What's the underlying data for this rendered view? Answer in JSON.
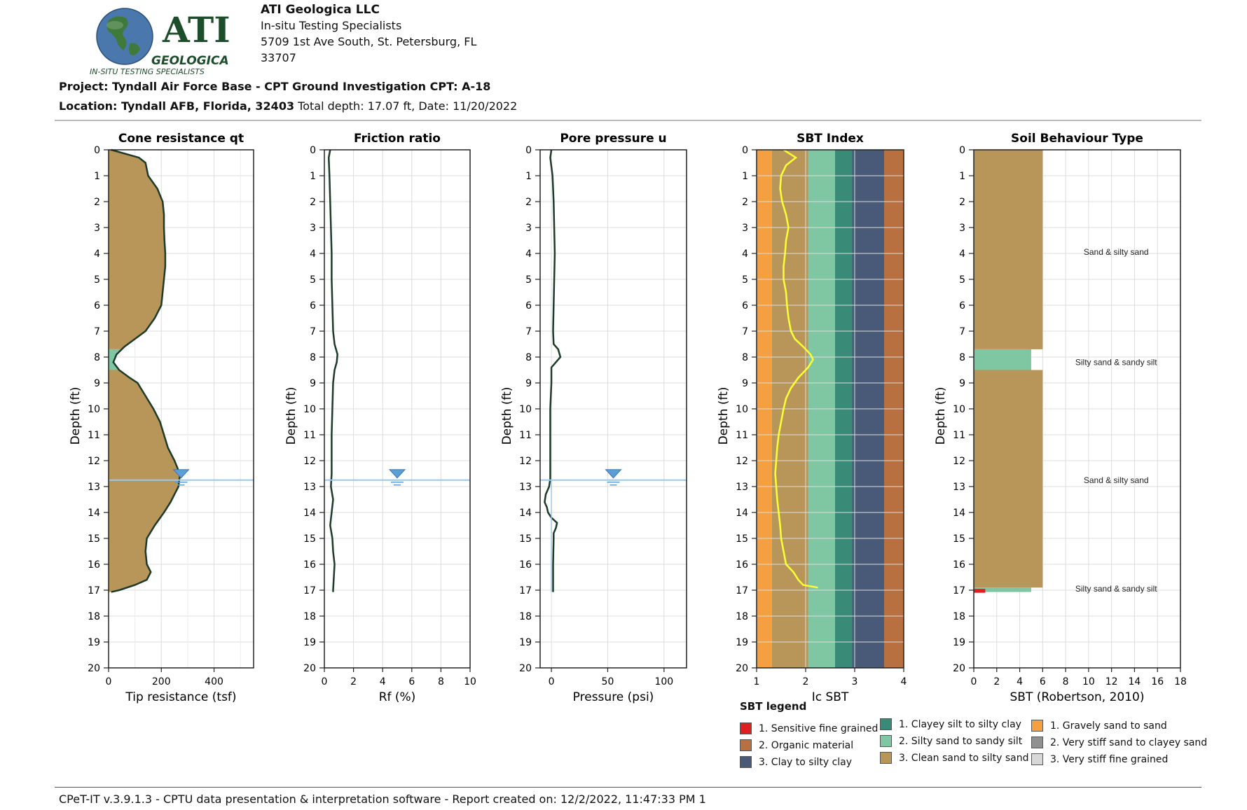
{
  "header": {
    "logo": {
      "word": "ATI",
      "subword": "GEOLOGICA",
      "tagline": "IN-SITU TESTING SPECIALISTS",
      "globe_icon": "globe-icon",
      "colors": {
        "globe": "#3f6fa6",
        "land": "#2f6b3a",
        "text": "#1e4d2b"
      }
    },
    "company": "ATI Geologica LLC",
    "tagline": "In-situ Testing Specialists",
    "address_line1": "5709 1st Ave South, St. Petersburg, FL",
    "address_line2": "33707",
    "project_line": "Project: Tyndall Air Force Base - CPT Ground Investigation CPT: A-18",
    "location_line": "Location: Tyndall AFB, Florida, 32403",
    "location_rest": " Total depth: 17.07 ft, Date: 11/20/2022"
  },
  "footer": "CPeT-IT v.3.9.1.3 - CPTU data presentation & interpretation software - Report created on: 12/2/2022, 11:47:33 PM 1",
  "colors": {
    "sand": "#b8965a",
    "silty_sand": "#7fc7a3",
    "outline": "#1e3a2a",
    "water": "#9cc7e6",
    "ic_line": "#ffff33"
  },
  "chart_data": [
    {
      "type": "area",
      "title": "Cone resistance qt",
      "xlabel": "Tip resistance (tsf)",
      "ylabel": "Depth (ft)",
      "xlim": [
        0,
        550
      ],
      "ylim": [
        20,
        0
      ],
      "xticks": [
        0,
        200,
        400
      ],
      "yticks": [
        0,
        1,
        2,
        3,
        4,
        5,
        6,
        7,
        8,
        9,
        10,
        11,
        12,
        13,
        14,
        15,
        16,
        17,
        18,
        19,
        20
      ],
      "water_table_depth": 12.75,
      "series": [
        {
          "depth": [
            0,
            0.3,
            0.5,
            1,
            1.5,
            2,
            2.5,
            3,
            3.5,
            4,
            4.5,
            5,
            5.5,
            6,
            6.5,
            7,
            7.3,
            7.6,
            7.9,
            8.2,
            8.5,
            8.8,
            9,
            9.5,
            10,
            10.5,
            11,
            11.5,
            12,
            12.3,
            12.6,
            13,
            13.3,
            13.6,
            14,
            14.5,
            15,
            15.5,
            16,
            16.3,
            16.6,
            16.8,
            17,
            17.07
          ],
          "qt": [
            10,
            115,
            140,
            150,
            185,
            205,
            210,
            210,
            212,
            215,
            215,
            210,
            205,
            200,
            175,
            140,
            100,
            60,
            30,
            18,
            40,
            80,
            110,
            140,
            170,
            195,
            210,
            225,
            250,
            262,
            270,
            265,
            250,
            235,
            210,
            175,
            145,
            140,
            145,
            160,
            145,
            100,
            40,
            10
          ]
        }
      ],
      "sbt_bands": [
        {
          "from": 0,
          "to": 7.7,
          "class": "sand"
        },
        {
          "from": 7.7,
          "to": 8.5,
          "class": "silty_sand"
        },
        {
          "from": 8.5,
          "to": 17.07,
          "class": "sand"
        }
      ]
    },
    {
      "type": "line",
      "title": "Friction ratio",
      "xlabel": "Rf (%)",
      "ylabel": "Depth (ft)",
      "xlim": [
        0,
        10
      ],
      "ylim": [
        20,
        0
      ],
      "xticks": [
        0,
        2,
        4,
        6,
        8,
        10
      ],
      "yticks": [
        0,
        1,
        2,
        3,
        4,
        5,
        6,
        7,
        8,
        9,
        10,
        11,
        12,
        13,
        14,
        15,
        16,
        17,
        18,
        19,
        20
      ],
      "water_table_depth": 12.75,
      "series": [
        {
          "depth": [
            0,
            0.3,
            1,
            2,
            3,
            4,
            5,
            6,
            7,
            7.5,
            7.9,
            8.2,
            8.5,
            9,
            10,
            11,
            12,
            12.5,
            13,
            13.5,
            14,
            14.5,
            15,
            15.5,
            16,
            16.5,
            17,
            17.07
          ],
          "rf": [
            0.4,
            0.3,
            0.35,
            0.4,
            0.45,
            0.5,
            0.5,
            0.55,
            0.6,
            0.7,
            0.9,
            0.85,
            0.7,
            0.6,
            0.55,
            0.5,
            0.5,
            0.5,
            0.45,
            0.6,
            0.5,
            0.4,
            0.55,
            0.6,
            0.7,
            0.65,
            0.6,
            0.6
          ]
        }
      ]
    },
    {
      "type": "line",
      "title": "Pore pressure u",
      "xlabel": "Pressure (psi)",
      "ylabel": "Depth (ft)",
      "xlim": [
        -10,
        120
      ],
      "ylim": [
        20,
        0
      ],
      "xticks": [
        0,
        50,
        100
      ],
      "yticks": [
        0,
        1,
        2,
        3,
        4,
        5,
        6,
        7,
        8,
        9,
        10,
        11,
        12,
        13,
        14,
        15,
        16,
        17,
        18,
        19,
        20
      ],
      "water_table_depth": 12.75,
      "series": [
        {
          "depth": [
            0,
            0.3,
            1,
            2,
            3,
            4,
            5,
            6,
            7,
            7.5,
            7.7,
            8,
            8.2,
            8.4,
            9,
            10,
            11,
            12,
            12.7,
            13,
            13.3,
            13.6,
            13.8,
            14,
            14.2,
            14.4,
            14.6,
            14.8,
            15,
            16,
            17,
            17.07
          ],
          "u": [
            0,
            -1,
            1,
            2,
            2.5,
            3,
            2.5,
            2,
            1.5,
            2,
            6,
            8,
            4,
            0,
            0,
            -1,
            -1,
            -1,
            -1,
            -2,
            -5,
            -6,
            -4,
            -3,
            0,
            5,
            4,
            2,
            2,
            1.5,
            1.5,
            1.5
          ]
        }
      ]
    },
    {
      "type": "line",
      "title": "SBT Index",
      "xlabel": "Ic SBT",
      "ylabel": "Depth (ft)",
      "xlim": [
        1,
        4
      ],
      "ylim": [
        20,
        0
      ],
      "xticks": [
        1,
        2,
        3,
        4
      ],
      "yticks": [
        0,
        1,
        2,
        3,
        4,
        5,
        6,
        7,
        8,
        9,
        10,
        11,
        12,
        13,
        14,
        15,
        16,
        17,
        18,
        19,
        20
      ],
      "zones": [
        {
          "from": 1.0,
          "to": 1.31,
          "color": "#f5a040"
        },
        {
          "from": 1.31,
          "to": 2.05,
          "color": "#b8965a"
        },
        {
          "from": 2.05,
          "to": 2.6,
          "color": "#7fc7a3"
        },
        {
          "from": 2.6,
          "to": 2.95,
          "color": "#3a8a78"
        },
        {
          "from": 2.95,
          "to": 3.6,
          "color": "#485a78"
        },
        {
          "from": 3.6,
          "to": 4.0,
          "color": "#b87040"
        }
      ],
      "series": [
        {
          "depth": [
            0,
            0.3,
            0.6,
            1,
            1.5,
            2,
            2.5,
            3,
            3.5,
            4,
            4.5,
            5,
            5.5,
            6,
            6.5,
            7,
            7.3,
            7.6,
            7.9,
            8.1,
            8.4,
            8.8,
            9.2,
            9.6,
            10,
            10.5,
            11,
            11.5,
            12,
            12.5,
            13,
            13.5,
            14,
            14.5,
            15,
            15.5,
            16,
            16.3,
            16.6,
            16.8,
            16.9
          ],
          "ic": [
            1.55,
            1.8,
            1.6,
            1.5,
            1.48,
            1.52,
            1.6,
            1.65,
            1.6,
            1.58,
            1.55,
            1.55,
            1.6,
            1.62,
            1.65,
            1.7,
            1.78,
            1.95,
            2.1,
            2.15,
            2.05,
            1.85,
            1.7,
            1.6,
            1.55,
            1.5,
            1.45,
            1.42,
            1.4,
            1.38,
            1.4,
            1.42,
            1.45,
            1.48,
            1.5,
            1.55,
            1.6,
            1.75,
            1.85,
            1.95,
            2.25
          ]
        }
      ]
    },
    {
      "type": "bar",
      "title": "Soil Behaviour Type",
      "xlabel": "SBT (Robertson, 2010)",
      "ylabel": "Depth (ft)",
      "xlim": [
        0,
        18
      ],
      "ylim": [
        20,
        0
      ],
      "xticks": [
        0,
        2,
        4,
        6,
        8,
        10,
        12,
        14,
        16,
        18
      ],
      "yticks": [
        0,
        1,
        2,
        3,
        4,
        5,
        6,
        7,
        8,
        9,
        10,
        11,
        12,
        13,
        14,
        15,
        16,
        17,
        18,
        19,
        20
      ],
      "layers": [
        {
          "from": 0,
          "to": 7.7,
          "sbt": 6,
          "color": "#b8965a",
          "label": "Sand & silty sand",
          "label_depth": 3.95
        },
        {
          "from": 7.7,
          "to": 8.5,
          "sbt": 5,
          "color": "#7fc7a3",
          "label": "Silty sand & sandy silt",
          "label_depth": 8.2
        },
        {
          "from": 8.5,
          "to": 16.9,
          "sbt": 6,
          "color": "#b8965a",
          "label": "Sand & silty sand",
          "label_depth": 12.75
        },
        {
          "from": 16.9,
          "to": 17.07,
          "sbt": 5,
          "color": "#7fc7a3",
          "label": "Silty sand & sandy silt",
          "label_depth": 16.95
        },
        {
          "from": 16.95,
          "to": 17.1,
          "sbt": 1,
          "color": "#e02020",
          "label": "",
          "label_depth": 0
        }
      ]
    }
  ],
  "legend": {
    "title": "SBT legend",
    "items": [
      {
        "label": "1. Sensitive fine grained",
        "color": "#e02020"
      },
      {
        "label": "2. Organic material",
        "color": "#b87040"
      },
      {
        "label": "3. Clay to silty clay",
        "color": "#485a78"
      },
      {
        "label": "1. Clayey silt to silty clay",
        "color": "#3a8a78"
      },
      {
        "label": "2. Silty sand to sandy silt",
        "color": "#7fc7a3"
      },
      {
        "label": "3. Clean sand to silty sand",
        "color": "#b8965a"
      },
      {
        "label": "1. Gravely sand to sand",
        "color": "#f5a040"
      },
      {
        "label": "2. Very stiff sand to clayey sand",
        "color": "#909090"
      },
      {
        "label": "3. Very stiff fine grained",
        "color": "#d8d8d8"
      }
    ]
  }
}
